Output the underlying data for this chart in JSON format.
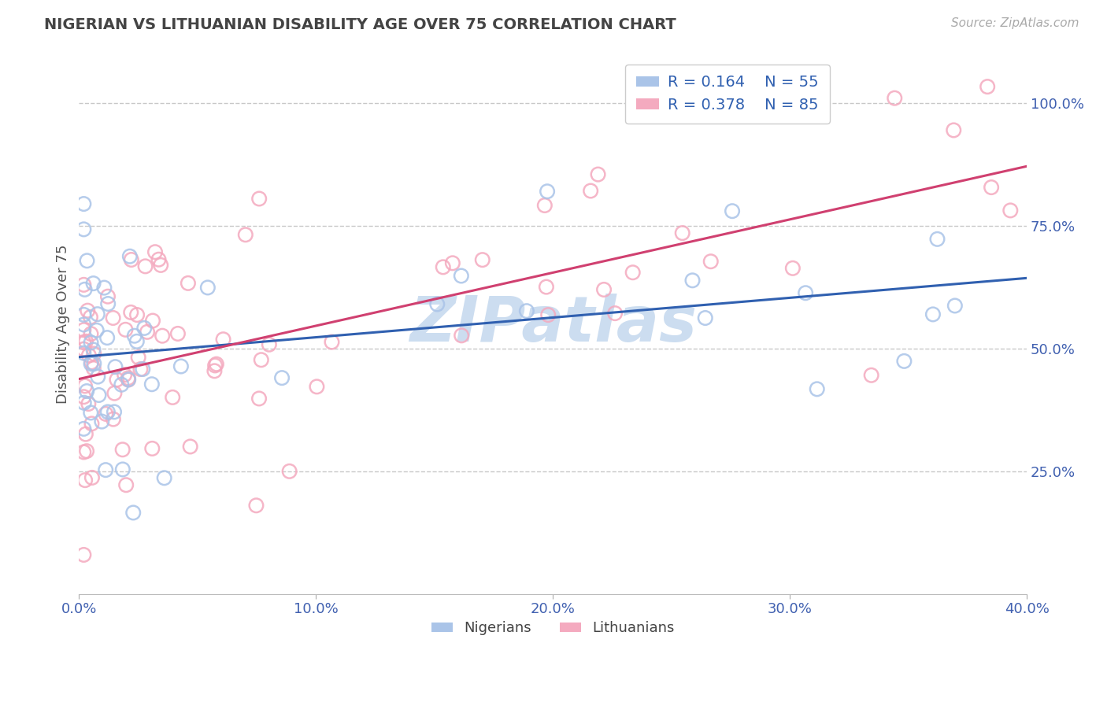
{
  "title": "NIGERIAN VS LITHUANIAN DISABILITY AGE OVER 75 CORRELATION CHART",
  "source_text": "Source: ZipAtlas.com",
  "ylabel": "Disability Age Over 75",
  "xmin": 0.0,
  "xmax": 0.4,
  "ymin": 0.0,
  "ymax": 1.1,
  "yticks": [
    0.25,
    0.5,
    0.75,
    1.0
  ],
  "ytick_labels": [
    "25.0%",
    "50.0%",
    "75.0%",
    "100.0%"
  ],
  "xticks": [
    0.0,
    0.1,
    0.2,
    0.3,
    0.4
  ],
  "xtick_labels": [
    "0.0%",
    "10.0%",
    "20.0%",
    "30.0%",
    "40.0%"
  ],
  "nigerians_R": 0.164,
  "nigerians_N": 55,
  "lithuanians_R": 0.378,
  "lithuanians_N": 85,
  "nigerian_dot_color": "#aac4e8",
  "lithuanian_dot_color": "#f4aabf",
  "nigerian_line_color": "#3060b0",
  "lithuanian_line_color": "#d04070",
  "background_color": "#ffffff",
  "grid_color": "#c8c8c8",
  "axis_tick_color": "#4060b0",
  "title_color": "#444444",
  "source_color": "#aaaaaa",
  "watermark_text": "ZIPatlas",
  "watermark_color": "#ccddf0",
  "legend_label_color": "#3060b0",
  "bottom_legend_color": "#444444"
}
